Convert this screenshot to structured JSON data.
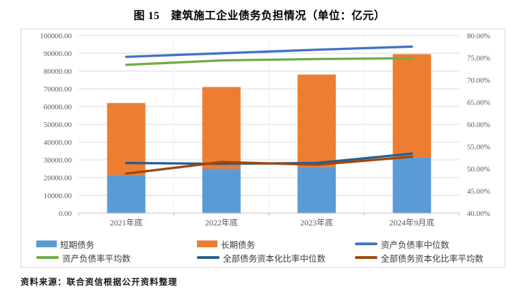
{
  "title": "图 15　建筑施工企业债务负担情况（单位：亿元）",
  "source_note": "资料来源：联合资信根据公开资料整理",
  "colors": {
    "short_term_bar": "#5B9BD5",
    "long_term_bar": "#ED7D31",
    "asset_liability_median_line": "#4472C4",
    "asset_liability_mean_line": "#70AD47",
    "capitalization_median_line": "#255E91",
    "capitalization_mean_line": "#9E480E",
    "gridline": "#D9D9D9",
    "axis_line": "#BFBFBF",
    "tick_text": "#595959",
    "chart_border": "#D8D8D8"
  },
  "chart_data": {
    "type": "combo",
    "title": "图 15　建筑施工企业债务负担情况（单位：亿元）",
    "categories": [
      "2021年底",
      "2022年底",
      "2023年底",
      "2024年9月底"
    ],
    "bar_mode": "stacked",
    "bar_series": [
      {
        "name": "短期债务",
        "type": "bar",
        "axis": "left",
        "color": "#5B9BD5",
        "values": [
          21500,
          25000,
          26000,
          31500
        ]
      },
      {
        "name": "长期债务",
        "type": "bar",
        "axis": "left",
        "color": "#ED7D31",
        "values": [
          40500,
          46000,
          52000,
          58000
        ]
      }
    ],
    "line_series": [
      {
        "name": "资产负债率中位数",
        "type": "line",
        "axis": "right",
        "color": "#4472C4",
        "values": [
          75.2,
          76.0,
          76.8,
          77.5
        ]
      },
      {
        "name": "资产负债率平均数",
        "type": "line",
        "axis": "right",
        "color": "#70AD47",
        "values": [
          73.4,
          74.4,
          74.7,
          74.9
        ]
      },
      {
        "name": "全部债务资本化比率中位数",
        "type": "line",
        "axis": "right",
        "color": "#255E91",
        "values": [
          51.3,
          51.1,
          51.3,
          53.4
        ]
      },
      {
        "name": "全部债务资本化比率平均数",
        "type": "line",
        "axis": "right",
        "color": "#9E480E",
        "values": [
          48.9,
          51.5,
          50.9,
          52.7
        ]
      }
    ],
    "y_left": {
      "min": 0,
      "max": 100000,
      "step": 10000,
      "tick_labels": [
        "0.00",
        "10000.00",
        "20000.00",
        "30000.00",
        "40000.00",
        "50000.00",
        "60000.00",
        "70000.00",
        "80000.00",
        "90000.00",
        "100000.00"
      ]
    },
    "y_right": {
      "min": 40,
      "max": 80,
      "step": 5,
      "tick_labels": [
        "40.00%",
        "45.00%",
        "50.00%",
        "55.00%",
        "60.00%",
        "65.00%",
        "70.00%",
        "75.00%",
        "80.00%"
      ]
    },
    "grid": true,
    "legend_position": "bottom"
  },
  "legend": {
    "items": [
      {
        "label": "短期债务",
        "swatch": "bar",
        "color": "#5B9BD5"
      },
      {
        "label": "长期债务",
        "swatch": "bar",
        "color": "#ED7D31"
      },
      {
        "label": "资产负债率中位数",
        "swatch": "line",
        "color": "#4472C4"
      },
      {
        "label": "资产负债率平均数",
        "swatch": "line",
        "color": "#70AD47"
      },
      {
        "label": "全部债务资本化比率中位数",
        "swatch": "line",
        "color": "#255E91"
      },
      {
        "label": "全部债务资本化比率平均数",
        "swatch": "line",
        "color": "#9E480E"
      }
    ]
  }
}
